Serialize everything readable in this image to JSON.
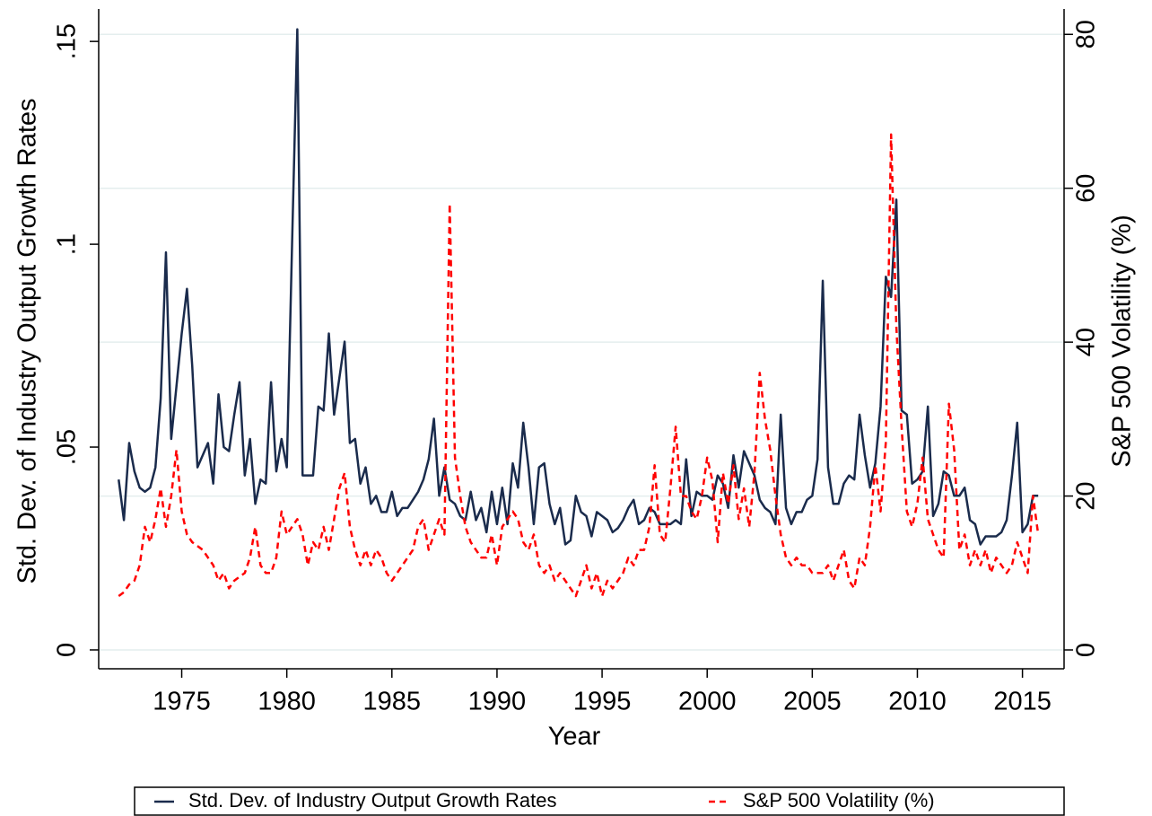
{
  "chart_data": {
    "type": "line",
    "xlabel": "Year",
    "ylabel": "Std. Dev. of Industry Output Growth Rates",
    "y2label": "S&P 500 Volatility (%)",
    "x": [
      1972,
      1972.25,
      1972.5,
      1972.75,
      1973,
      1973.25,
      1973.5,
      1973.75,
      1974,
      1974.25,
      1974.5,
      1974.75,
      1975,
      1975.25,
      1975.5,
      1975.75,
      1976,
      1976.25,
      1976.5,
      1976.75,
      1977,
      1977.25,
      1977.5,
      1977.75,
      1978,
      1978.25,
      1978.5,
      1978.75,
      1979,
      1979.25,
      1979.5,
      1979.75,
      1980,
      1980.25,
      1980.5,
      1980.75,
      1981,
      1981.25,
      1981.5,
      1981.75,
      1982,
      1982.25,
      1982.5,
      1982.75,
      1983,
      1983.25,
      1983.5,
      1983.75,
      1984,
      1984.25,
      1984.5,
      1984.75,
      1985,
      1985.25,
      1985.5,
      1985.75,
      1986,
      1986.25,
      1986.5,
      1986.75,
      1987,
      1987.25,
      1987.5,
      1987.75,
      1988,
      1988.25,
      1988.5,
      1988.75,
      1989,
      1989.25,
      1989.5,
      1989.75,
      1990,
      1990.25,
      1990.5,
      1990.75,
      1991,
      1991.25,
      1991.5,
      1991.75,
      1992,
      1992.25,
      1992.5,
      1992.75,
      1993,
      1993.25,
      1993.5,
      1993.75,
      1994,
      1994.25,
      1994.5,
      1994.75,
      1995,
      1995.25,
      1995.5,
      1995.75,
      1996,
      1996.25,
      1996.5,
      1996.75,
      1997,
      1997.25,
      1997.5,
      1997.75,
      1998,
      1998.25,
      1998.5,
      1998.75,
      1999,
      1999.25,
      1999.5,
      1999.75,
      2000,
      2000.25,
      2000.5,
      2000.75,
      2001,
      2001.25,
      2001.5,
      2001.75,
      2002,
      2002.25,
      2002.5,
      2002.75,
      2003,
      2003.25,
      2003.5,
      2003.75,
      2004,
      2004.25,
      2004.5,
      2004.75,
      2005,
      2005.25,
      2005.5,
      2005.75,
      2006,
      2006.25,
      2006.5,
      2006.75,
      2007,
      2007.25,
      2007.5,
      2007.75,
      2008,
      2008.25,
      2008.5,
      2008.75,
      2009,
      2009.25,
      2009.5,
      2009.75,
      2010,
      2010.25,
      2010.5,
      2010.75,
      2011,
      2011.25,
      2011.5,
      2011.75,
      2012,
      2012.25,
      2012.5,
      2012.75,
      2013,
      2013.25,
      2013.5,
      2013.75,
      2014,
      2014.25,
      2014.5,
      2014.75,
      2015,
      2015.25,
      2015.5,
      2015.75
    ],
    "series": [
      {
        "name": "Std. Dev. of Industry Output Growth Rates",
        "color": "#1a2b4c",
        "dash": "solid",
        "values": [
          0.042,
          0.032,
          0.051,
          0.044,
          0.04,
          0.039,
          0.04,
          0.045,
          0.062,
          0.098,
          0.052,
          0.065,
          0.078,
          0.089,
          0.07,
          0.045,
          0.048,
          0.051,
          0.041,
          0.063,
          0.05,
          0.049,
          0.058,
          0.066,
          0.043,
          0.052,
          0.036,
          0.042,
          0.041,
          0.066,
          0.044,
          0.052,
          0.045,
          0.1,
          0.153,
          0.043,
          0.043,
          0.043,
          0.06,
          0.059,
          0.078,
          0.058,
          0.067,
          0.076,
          0.051,
          0.052,
          0.041,
          0.045,
          0.036,
          0.038,
          0.034,
          0.034,
          0.039,
          0.033,
          0.035,
          0.035,
          0.037,
          0.039,
          0.042,
          0.047,
          0.057,
          0.038,
          0.045,
          0.037,
          0.036,
          0.033,
          0.032,
          0.039,
          0.032,
          0.035,
          0.029,
          0.039,
          0.031,
          0.04,
          0.031,
          0.046,
          0.04,
          0.056,
          0.045,
          0.031,
          0.045,
          0.046,
          0.036,
          0.031,
          0.035,
          0.026,
          0.027,
          0.038,
          0.034,
          0.033,
          0.028,
          0.034,
          0.033,
          0.032,
          0.029,
          0.03,
          0.032,
          0.035,
          0.037,
          0.031,
          0.032,
          0.035,
          0.034,
          0.031,
          0.031,
          0.031,
          0.032,
          0.031,
          0.047,
          0.033,
          0.039,
          0.038,
          0.038,
          0.037,
          0.043,
          0.041,
          0.035,
          0.048,
          0.04,
          0.049,
          0.046,
          0.043,
          0.037,
          0.035,
          0.034,
          0.031,
          0.058,
          0.035,
          0.031,
          0.034,
          0.034,
          0.037,
          0.038,
          0.047,
          0.091,
          0.045,
          0.036,
          0.036,
          0.041,
          0.043,
          0.042,
          0.058,
          0.048,
          0.04,
          0.046,
          0.06,
          0.092,
          0.087,
          0.111,
          0.059,
          0.058,
          0.041,
          0.042,
          0.044,
          0.06,
          0.033,
          0.036,
          0.044,
          0.043,
          0.038,
          0.038,
          0.04,
          0.032,
          0.031,
          0.026,
          0.028,
          0.028,
          0.028,
          0.029,
          0.032,
          0.043,
          0.056,
          0.029,
          0.031,
          0.038,
          0.038
        ]
      },
      {
        "name": "S&P 500 Volatility (%)",
        "color": "#ff0000",
        "dash": "dashed",
        "axis": "y2",
        "values": [
          7,
          7.5,
          8.5,
          9,
          11,
          16,
          14,
          17,
          21,
          16,
          20,
          26,
          18,
          15,
          14,
          13.5,
          13,
          12,
          11,
          9,
          10,
          8,
          9,
          9.5,
          10,
          12,
          16,
          11,
          10,
          10,
          12,
          18,
          15,
          16,
          17,
          15,
          11,
          14,
          13,
          16,
          13,
          17,
          21,
          23,
          16,
          13,
          11,
          13,
          11,
          13,
          12,
          10,
          9,
          10,
          11,
          12,
          13,
          16,
          17,
          13,
          15,
          17,
          15,
          58,
          25,
          20,
          16,
          14,
          13,
          12,
          12,
          15,
          11,
          16,
          17,
          18,
          17,
          14,
          13,
          15,
          11,
          10,
          11,
          9,
          10,
          9,
          8,
          7,
          9,
          11,
          8,
          10,
          7,
          9,
          8,
          9,
          10,
          12,
          11,
          13,
          13,
          16,
          24,
          15,
          14,
          21,
          29,
          20,
          20,
          18,
          17,
          20,
          25,
          22,
          14,
          23,
          19,
          24,
          17,
          21,
          16,
          23,
          36,
          30,
          26,
          20,
          15,
          12,
          11,
          12,
          11,
          11,
          10,
          10,
          10,
          11,
          9,
          11,
          13,
          9,
          8,
          12,
          11,
          16,
          24,
          18,
          27,
          67,
          42,
          29,
          18,
          16,
          19,
          25,
          17,
          15,
          13,
          12,
          32,
          26,
          13,
          15,
          11,
          13,
          11,
          13,
          10,
          12,
          11,
          10,
          11,
          14,
          12,
          10,
          20,
          15
        ]
      }
    ],
    "xlim": [
      1971.05,
      2016.98
    ],
    "xticks": [
      1975,
      1980,
      1985,
      1990,
      1995,
      2000,
      2005,
      2010,
      2015
    ],
    "ylim": [
      -0.00465,
      0.158
    ],
    "yticks": [
      0,
      {
        "value": 0.05,
        "label": ".05"
      },
      {
        "value": 0.1,
        "label": ".1"
      },
      {
        "value": 0.15,
        "label": ".15"
      }
    ],
    "y2lim": [
      -2.45,
      83.3
    ],
    "y2ticks": [
      0,
      20,
      40,
      60,
      80
    ],
    "grid": "y2",
    "legend": "bottom"
  }
}
